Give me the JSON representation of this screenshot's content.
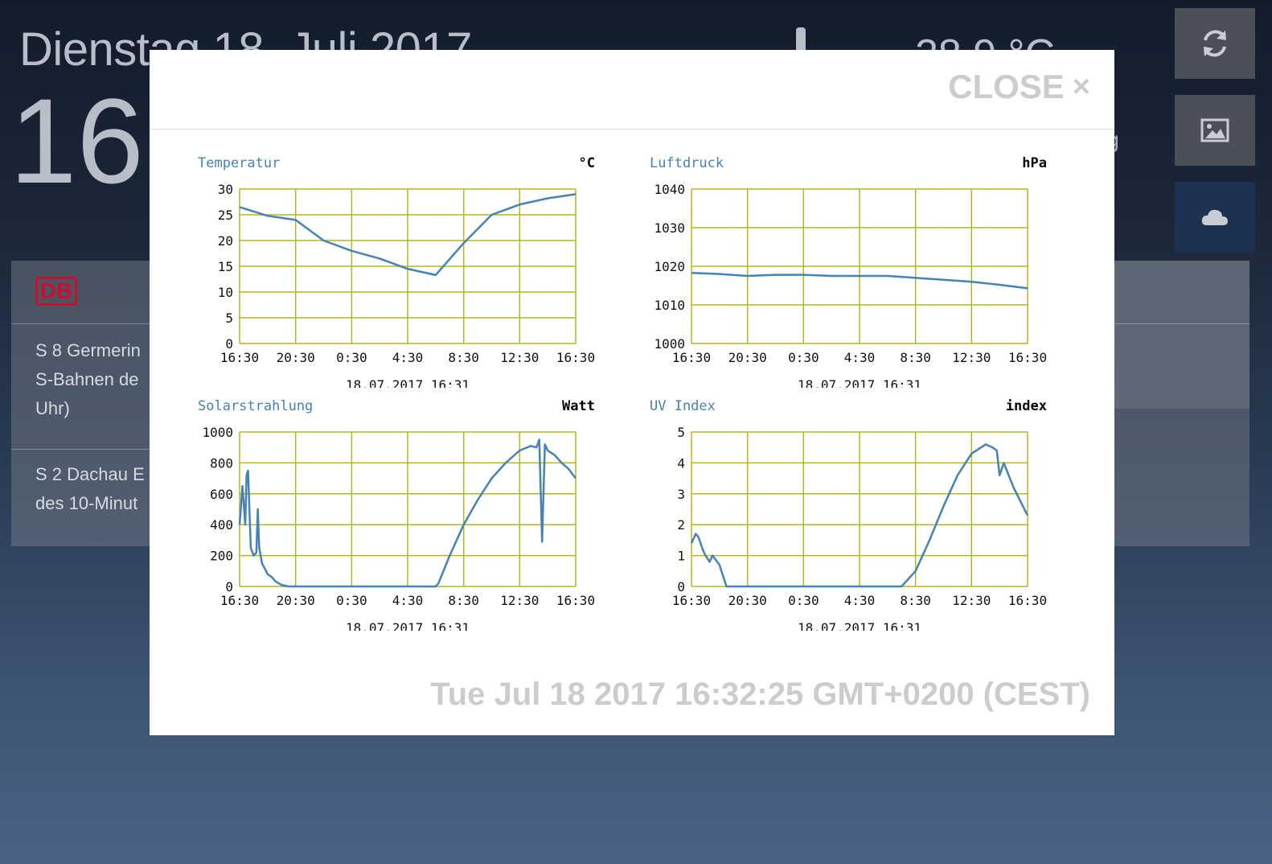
{
  "background": {
    "date": "Dienstag 18. Juli 2017",
    "clock": "16",
    "temperature": "28.9 °C",
    "side_text": "ig",
    "db": {
      "logo": "DB",
      "items": [
        {
          "lines": [
            "S 8 Germerin",
            "S-Bahnen de",
            "Uhr)"
          ]
        },
        {
          "lines": [
            "S 2 Dachau E",
            "des 10-Minut"
          ]
        }
      ]
    }
  },
  "modal": {
    "close_label": "CLOSE",
    "close_icon": "×",
    "footer_date": "Tue Jul 18 2017 16:32:25 GMT+0200 (CEST)"
  },
  "chart_data": [
    {
      "type": "line",
      "title": "Temperatur",
      "unit": "°C",
      "subtitle": "18.07.2017 16:31",
      "x_ticks": [
        "16:30",
        "20:30",
        "0:30",
        "4:30",
        "8:30",
        "12:30",
        "16:30"
      ],
      "y_ticks": [
        "0",
        "5",
        "10",
        "15",
        "20",
        "25",
        "30"
      ],
      "ylim": [
        0,
        30
      ],
      "x": [
        0,
        2,
        4,
        6,
        8,
        10,
        12,
        14,
        16,
        18,
        20,
        22,
        24
      ],
      "values": [
        26.5,
        24.8,
        24.0,
        20.0,
        18.0,
        16.5,
        14.5,
        13.3,
        19.5,
        25.0,
        27.0,
        28.2,
        29.0
      ],
      "color": "#4682b4",
      "grid": true
    },
    {
      "type": "line",
      "title": "Luftdruck",
      "unit": "hPa",
      "subtitle": "18.07.2017 16:31",
      "x_ticks": [
        "16:30",
        "20:30",
        "0:30",
        "4:30",
        "8:30",
        "12:30",
        "16:30"
      ],
      "y_ticks": [
        "1000",
        "1010",
        "1020",
        "1030",
        "1040"
      ],
      "ylim": [
        1000,
        1040
      ],
      "x": [
        0,
        2,
        4,
        6,
        8,
        10,
        12,
        14,
        16,
        18,
        20,
        22,
        24
      ],
      "values": [
        1018.3,
        1018.0,
        1017.5,
        1017.8,
        1017.8,
        1017.5,
        1017.5,
        1017.5,
        1017.0,
        1016.5,
        1016.0,
        1015.2,
        1014.3
      ],
      "color": "#4682b4",
      "grid": true
    },
    {
      "type": "line",
      "title": "Solarstrahlung",
      "unit": "Watt",
      "subtitle": "18.07.2017 16:31",
      "x_ticks": [
        "16:30",
        "20:30",
        "0:30",
        "4:30",
        "8:30",
        "12:30",
        "16:30"
      ],
      "y_ticks": [
        "0",
        "200",
        "400",
        "600",
        "800",
        "1000"
      ],
      "ylim": [
        0,
        1000
      ],
      "x": [
        0,
        0.2,
        0.4,
        0.5,
        0.6,
        0.8,
        1.0,
        1.2,
        1.3,
        1.4,
        1.6,
        2.0,
        2.3,
        2.6,
        3.0,
        3.5,
        4.0,
        8.0,
        12.0,
        14.0,
        14.2,
        15.0,
        16.0,
        17.0,
        18.0,
        19.0,
        20.0,
        20.8,
        21.2,
        21.4,
        21.6,
        21.8,
        22.0,
        22.5,
        23.0,
        23.5,
        24.0
      ],
      "values": [
        400,
        650,
        400,
        720,
        750,
        250,
        200,
        220,
        500,
        250,
        150,
        80,
        60,
        30,
        10,
        0,
        0,
        0,
        0,
        0,
        20,
        200,
        400,
        560,
        700,
        800,
        880,
        910,
        900,
        950,
        290,
        920,
        880,
        850,
        800,
        760,
        700
      ],
      "color": "#4682b4",
      "grid": true
    },
    {
      "type": "line",
      "title": "UV Index",
      "unit": "index",
      "subtitle": "18.07.2017 16:31",
      "x_ticks": [
        "16:30",
        "20:30",
        "0:30",
        "4:30",
        "8:30",
        "12:30",
        "16:30"
      ],
      "y_ticks": [
        "0",
        "1",
        "2",
        "3",
        "4",
        "5"
      ],
      "ylim": [
        0,
        5
      ],
      "x": [
        0,
        0.3,
        0.5,
        0.8,
        1.0,
        1.3,
        1.5,
        2.0,
        2.5,
        12.0,
        15.0,
        16.0,
        17.0,
        18.0,
        19.0,
        20.0,
        21.0,
        21.5,
        21.8,
        22.0,
        22.3,
        23.0,
        24.0
      ],
      "values": [
        1.4,
        1.7,
        1.6,
        1.2,
        1.0,
        0.8,
        1.0,
        0.7,
        0,
        0,
        0,
        0.5,
        1.5,
        2.6,
        3.6,
        4.3,
        4.6,
        4.5,
        4.4,
        3.6,
        4.0,
        3.2,
        2.3
      ],
      "color": "#4682b4",
      "grid": true
    }
  ]
}
